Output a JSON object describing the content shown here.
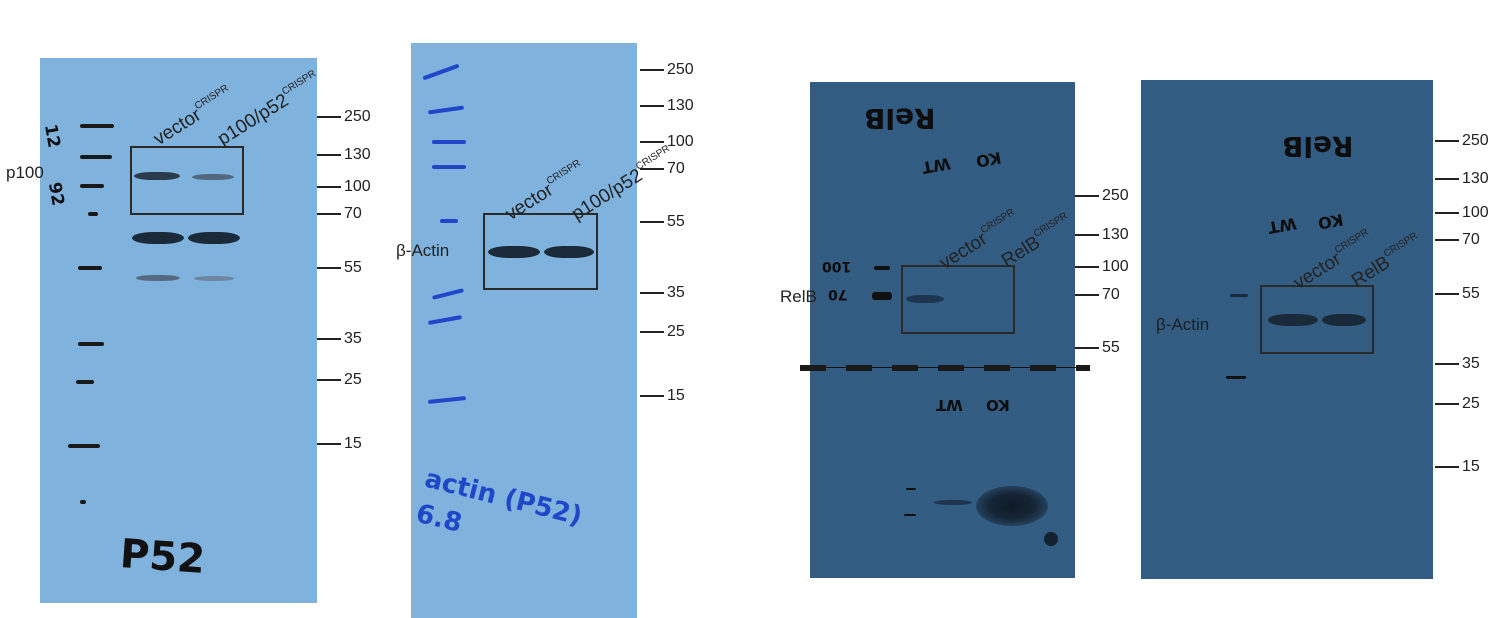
{
  "panels": [
    {
      "lanes": [
        "vector",
        "CRISPR",
        "p100/p52",
        "CRISPR"
      ],
      "target": "p100",
      "markers": [
        "250",
        "130",
        "100",
        "70",
        "55",
        "35",
        "25",
        "15"
      ],
      "handwriting": "P52",
      "ladder_marks": [
        "12",
        "92"
      ]
    },
    {
      "lanes": [
        "vector",
        "CRISPR",
        "p100/p52",
        "CRISPR"
      ],
      "target": "β-Actin",
      "markers": [
        "250",
        "130",
        "100",
        "70",
        "55",
        "35",
        "25",
        "15"
      ],
      "handwriting": "actin (P52) 6.8"
    },
    {
      "lanes": [
        "vector",
        "CRISPR",
        "RelB",
        "CRISPR"
      ],
      "target": "RelB",
      "markers": [
        "250",
        "130",
        "100",
        "70",
        "55"
      ],
      "handwriting_top": "RelB",
      "lane_marks_top": [
        "WT",
        "KO"
      ],
      "lane_marks_bottom": [
        "WT",
        "KO"
      ],
      "ladder_marks": [
        "100",
        "70"
      ]
    },
    {
      "lanes": [
        "vector",
        "CRISPR",
        "RelB",
        "CRISPR"
      ],
      "target": "β-Actin",
      "markers": [
        "250",
        "130",
        "100",
        "70",
        "55",
        "35",
        "25",
        "15"
      ],
      "handwriting_top": "RelB",
      "lane_marks_top": [
        "WT",
        "KO"
      ]
    }
  ],
  "colors": {
    "light_membrane": "#7fb3de",
    "dark_membrane": "#335c82",
    "band": "#1b2a38",
    "ladder_blue": "#1f47c7"
  }
}
